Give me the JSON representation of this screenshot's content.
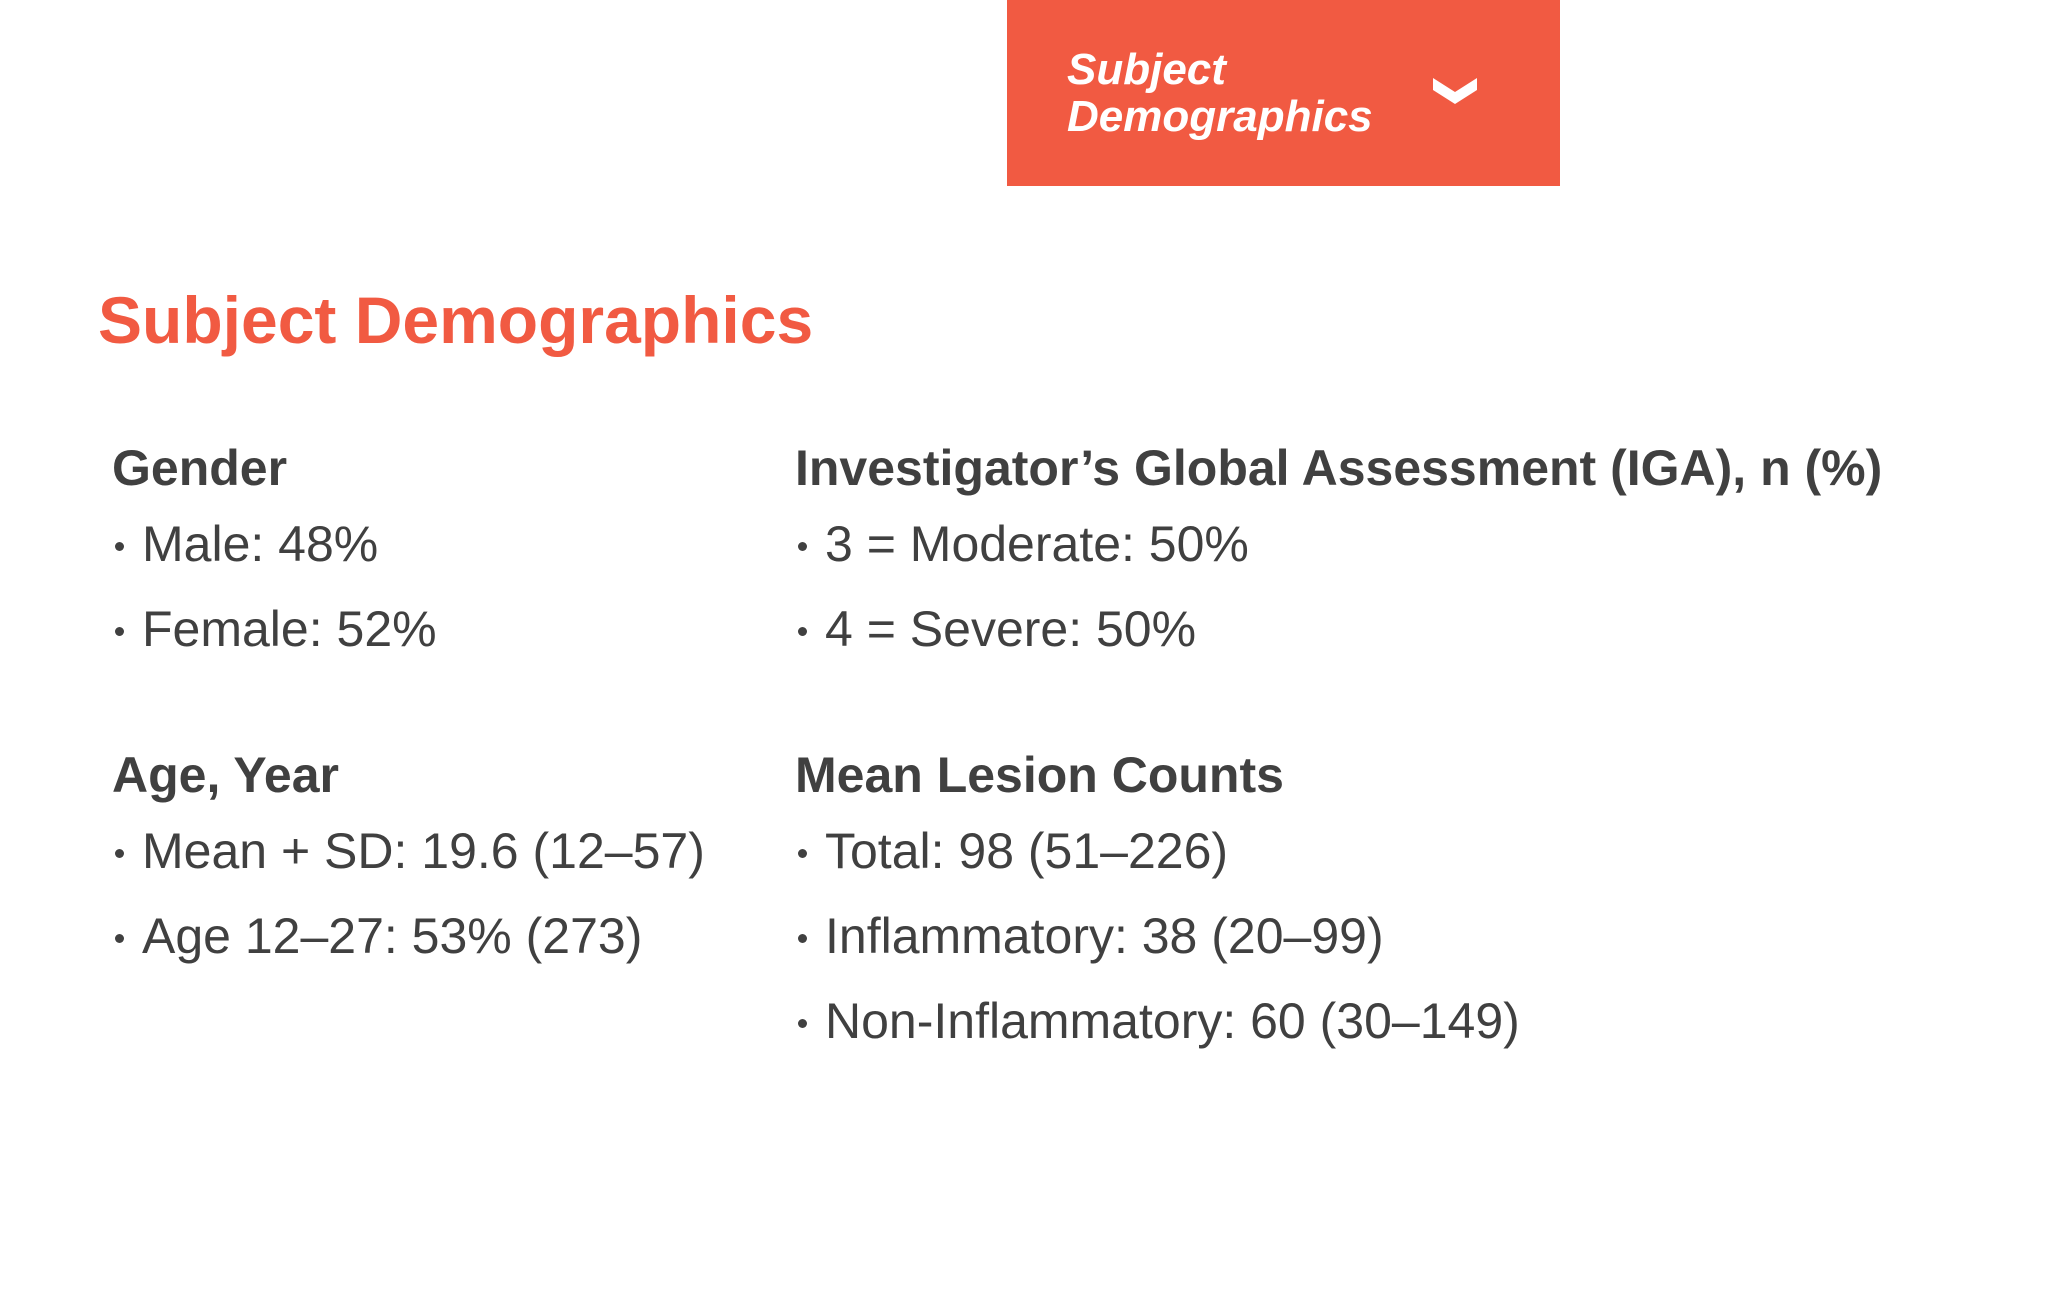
{
  "tab": {
    "label": "Subject Demographics",
    "icon": "chevron-down-icon",
    "background": "#f15a42"
  },
  "page_title": "Subject Demographics",
  "accent_color": "#f15a42",
  "text_color": "#404040",
  "sections": {
    "gender": {
      "heading": "Gender",
      "items": [
        "Male: 48%",
        "Female: 52%"
      ]
    },
    "iga": {
      "heading": "Investigator’s Global Assessment (IGA), n (%)",
      "items": [
        "3 = Moderate: 50%",
        "4 = Severe: 50%"
      ]
    },
    "age": {
      "heading": "Age, Year",
      "items": [
        "Mean + SD: 19.6 (12–57)",
        "Age 12–27: 53% (273)"
      ]
    },
    "lesions": {
      "heading": "Mean Lesion Counts",
      "items": [
        "Total: 98 (51–226)",
        "Inflammatory: 38 (20–99)",
        "Non-Inflammatory: 60 (30–149)"
      ]
    }
  }
}
